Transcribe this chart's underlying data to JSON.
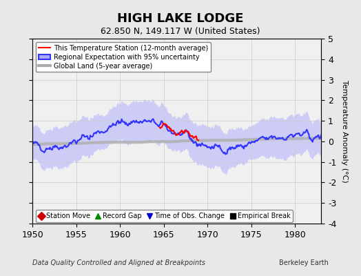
{
  "title": "HIGH LAKE LODGE",
  "subtitle": "62.850 N, 149.117 W (United States)",
  "ylabel": "Temperature Anomaly (°C)",
  "xlabel_footer": "Data Quality Controlled and Aligned at Breakpoints",
  "footer_right": "Berkeley Earth",
  "xlim": [
    1950,
    1983
  ],
  "ylim": [
    -4,
    5
  ],
  "yticks": [
    -4,
    -3,
    -2,
    -1,
    0,
    1,
    2,
    3,
    4,
    5
  ],
  "xticks": [
    1950,
    1955,
    1960,
    1965,
    1970,
    1975,
    1980
  ],
  "bg_color": "#e8e8e8",
  "plot_bg_color": "#f0f0f0",
  "legend1_items": [
    {
      "label": "This Temperature Station (12-month average)",
      "color": "#ff0000",
      "lw": 1.5
    },
    {
      "label": "Regional Expectation with 95% uncertainty",
      "color": "#4444ff",
      "lw": 2.5
    },
    {
      "label": "Global Land (5-year average)",
      "color": "#aaaaaa",
      "lw": 3
    }
  ],
  "legend2_items": [
    {
      "label": "Station Move",
      "marker": "D",
      "color": "#cc0000"
    },
    {
      "label": "Record Gap",
      "marker": "^",
      "color": "#008800"
    },
    {
      "label": "Time of Obs. Change",
      "marker": "v",
      "color": "#0000cc"
    },
    {
      "label": "Empirical Break",
      "marker": "s",
      "color": "#000000"
    }
  ]
}
